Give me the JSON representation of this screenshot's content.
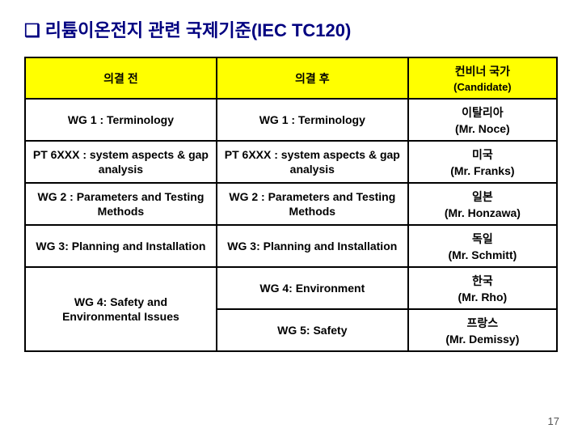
{
  "title": "리튬이온전지 관련 국제기준(IEC TC120)",
  "bullet": "❑",
  "headers": {
    "col1": "의결 전",
    "col2": "의결 후",
    "col3_line1": "컨비너 국가",
    "col3_line2": "(Candidate)"
  },
  "rows": {
    "r1": {
      "c1": "WG 1 : Terminology",
      "c2": "WG 1 : Terminology",
      "c3_line1": "이탈리아",
      "c3_line2": "(Mr. Noce)"
    },
    "r2": {
      "c1_line1": "PT 6XXX : system aspects & gap",
      "c1_line2": "analysis",
      "c2_line1": "PT 6XXX : system aspects & gap",
      "c2_line2": "analysis",
      "c3_line1": "미국",
      "c3_line2": "(Mr. Franks)"
    },
    "r3": {
      "c1_line1": "WG 2 : Parameters and Testing",
      "c1_line2": "Methods",
      "c2_line1": "WG 2 : Parameters and Testing",
      "c2_line2": "Methods",
      "c3_line1": "일본",
      "c3_line2": "(Mr. Honzawa)"
    },
    "r4": {
      "c1": "WG 3: Planning and Installation",
      "c2": "WG 3: Planning and Installation",
      "c3_line1": "독일",
      "c3_line2": "(Mr. Schmitt)"
    },
    "r5": {
      "c1_line1": "WG 4: Safety and",
      "c1_line2": "Environmental Issues",
      "c2a": "WG 4: Environment",
      "c2b": "WG 5: Safety",
      "c3a_line1": "한국",
      "c3a_line2": "(Mr. Rho)",
      "c3b_line1": "프랑스",
      "c3b_line2": "(Mr. Demissy)"
    }
  },
  "page_number": "17",
  "colors": {
    "title": "#000080",
    "header_bg": "#ffff00",
    "border": "#000000",
    "cell_bg": "#ffffff"
  }
}
